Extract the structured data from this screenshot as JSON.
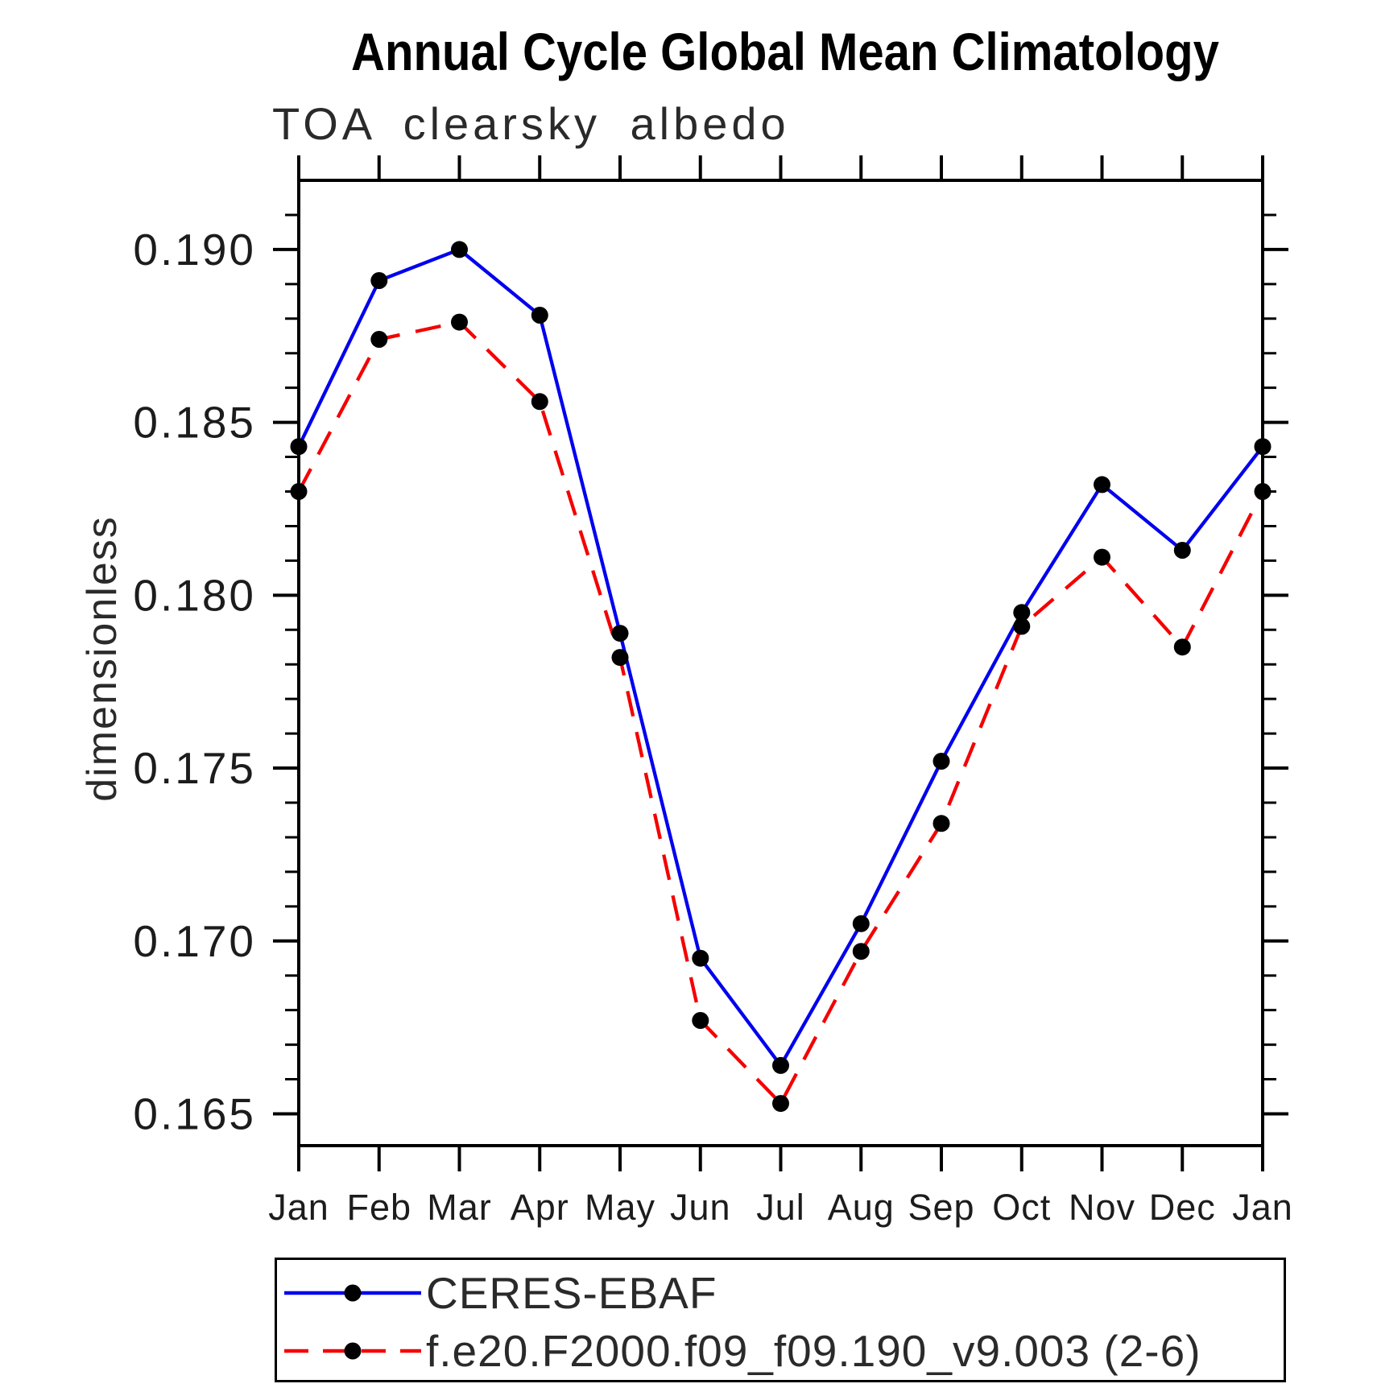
{
  "title": "Annual Cycle Global Mean Climatology",
  "subtitle": "TOA clearsky albedo",
  "ylabel": "dimensionless",
  "chart_data": {
    "type": "line",
    "title": "Annual Cycle Global Mean Climatology",
    "subtitle": "TOA clearsky albedo",
    "xlabel": "",
    "ylabel": "dimensionless",
    "categories": [
      "Jan",
      "Feb",
      "Mar",
      "Apr",
      "May",
      "Jun",
      "Jul",
      "Aug",
      "Sep",
      "Oct",
      "Nov",
      "Dec",
      "Jan"
    ],
    "series": [
      {
        "name": "CERES-EBAF",
        "color": "#0000ee",
        "line_style": "solid",
        "marker": "filled-black-circle",
        "values": [
          0.1843,
          0.1891,
          0.19,
          0.1881,
          0.1789,
          0.1695,
          0.1664,
          0.1705,
          0.1752,
          0.1795,
          0.1832,
          0.1813,
          0.1843
        ]
      },
      {
        "name": "f.e20.F2000.f09_f09.190_v9.003 (2-6)",
        "color": "#f40000",
        "line_style": "dashed",
        "marker": "filled-black-circle",
        "values": [
          0.183,
          0.1874,
          0.1879,
          0.1856,
          0.1782,
          0.1677,
          0.1653,
          0.1697,
          0.1734,
          0.1791,
          0.1811,
          0.1785,
          0.183
        ]
      }
    ],
    "y_major_ticks": [
      0.19,
      0.185,
      0.18,
      0.175,
      0.17,
      0.165
    ],
    "y_tick_labels": [
      "0.190",
      "0.185",
      "0.180",
      "0.175",
      "0.170",
      "0.165"
    ],
    "y_minor_step": 0.001,
    "ylim": [
      0.16408,
      0.192
    ],
    "grid": false,
    "legend_position": "bottom",
    "frame_color": "#000000",
    "marker_color": "#000000"
  },
  "legend": {
    "items": [
      {
        "label": "CERES-EBAF"
      },
      {
        "label": "f.e20.F2000.f09_f09.190_v9.003 (2-6)"
      }
    ]
  }
}
